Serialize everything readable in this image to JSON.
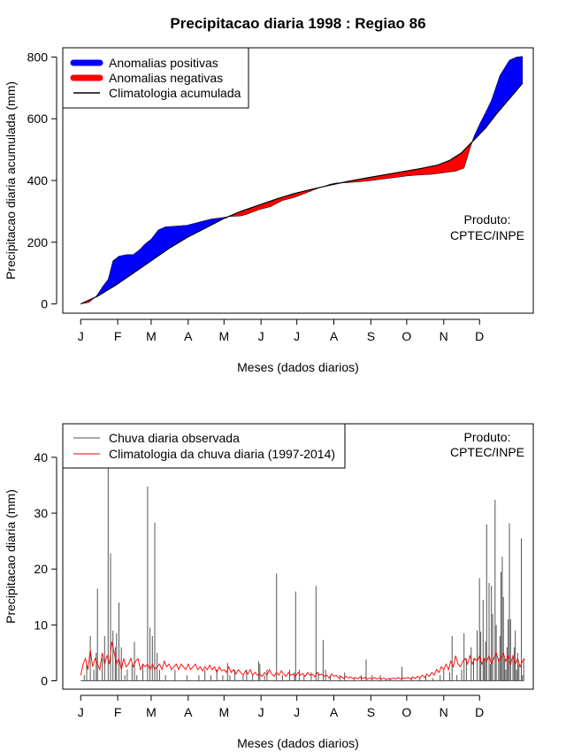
{
  "title": "Precipitacao diaria 1998 : Regiao 86",
  "product_label": [
    "Produto:",
    "CPTEC/INPE"
  ],
  "months": [
    "J",
    "F",
    "M",
    "A",
    "M",
    "J",
    "J",
    "A",
    "S",
    "O",
    "N",
    "D"
  ],
  "colors": {
    "positive": "#0000ff",
    "negative": "#ff0000",
    "climatology": "#000000",
    "daily_obs": "#555555",
    "daily_clim": "#ff0000"
  },
  "chart_data": [
    {
      "type": "area",
      "ylabel": "Precipitacao diaria acumulada (mm)",
      "xlabel": "Meses (dados diarios)",
      "yticks": [
        0,
        200,
        400,
        600,
        800
      ],
      "ylim": [
        -30,
        830
      ],
      "xlim": [
        -14,
        380
      ],
      "legend": [
        "Anomalias positivas",
        "Anomalias negativas",
        "Climatologia acumulada"
      ],
      "observed_cumulative": [
        [
          1,
          0
        ],
        [
          8,
          5
        ],
        [
          14,
          25
        ],
        [
          20,
          60
        ],
        [
          24,
          80
        ],
        [
          28,
          140
        ],
        [
          33,
          155
        ],
        [
          40,
          160
        ],
        [
          45,
          160
        ],
        [
          50,
          175
        ],
        [
          55,
          195
        ],
        [
          60,
          210
        ],
        [
          66,
          240
        ],
        [
          72,
          250
        ],
        [
          80,
          252
        ],
        [
          90,
          255
        ],
        [
          100,
          265
        ],
        [
          110,
          275
        ],
        [
          120,
          280
        ],
        [
          125,
          283
        ],
        [
          135,
          285
        ],
        [
          140,
          290
        ],
        [
          150,
          305
        ],
        [
          160,
          315
        ],
        [
          170,
          335
        ],
        [
          180,
          345
        ],
        [
          190,
          360
        ],
        [
          200,
          375
        ],
        [
          210,
          388
        ],
        [
          215,
          392
        ],
        [
          225,
          393
        ],
        [
          235,
          396
        ],
        [
          245,
          400
        ],
        [
          255,
          405
        ],
        [
          265,
          410
        ],
        [
          275,
          415
        ],
        [
          285,
          418
        ],
        [
          295,
          420
        ],
        [
          305,
          425
        ],
        [
          315,
          430
        ],
        [
          322,
          440
        ],
        [
          326,
          490
        ],
        [
          330,
          540
        ],
        [
          336,
          590
        ],
        [
          340,
          620
        ],
        [
          345,
          660
        ],
        [
          352,
          740
        ],
        [
          360,
          790
        ],
        [
          366,
          800
        ],
        [
          371,
          802
        ]
      ],
      "climatology_cumulative": [
        [
          1,
          0
        ],
        [
          15,
          25
        ],
        [
          30,
          60
        ],
        [
          45,
          100
        ],
        [
          60,
          140
        ],
        [
          75,
          180
        ],
        [
          90,
          215
        ],
        [
          105,
          245
        ],
        [
          120,
          275
        ],
        [
          135,
          300
        ],
        [
          150,
          320
        ],
        [
          165,
          340
        ],
        [
          180,
          358
        ],
        [
          195,
          372
        ],
        [
          210,
          385
        ],
        [
          225,
          397
        ],
        [
          240,
          408
        ],
        [
          255,
          418
        ],
        [
          270,
          428
        ],
        [
          285,
          438
        ],
        [
          300,
          450
        ],
        [
          310,
          465
        ],
        [
          320,
          490
        ],
        [
          330,
          530
        ],
        [
          340,
          570
        ],
        [
          350,
          620
        ],
        [
          360,
          665
        ],
        [
          371,
          715
        ]
      ]
    },
    {
      "type": "bar",
      "ylabel": "Precipitacao diaria (mm)",
      "xlabel": "Meses (dados diarios)",
      "yticks": [
        0,
        10,
        20,
        30,
        40
      ],
      "ylim": [
        -1.5,
        46
      ],
      "xlim": [
        -14,
        380
      ],
      "legend": [
        "Chuva diaria observada",
        "Climatologia da chuva diaria (1997-2014)"
      ],
      "observed_daily": [
        [
          4,
          1
        ],
        [
          6,
          3
        ],
        [
          9,
          8
        ],
        [
          12,
          2
        ],
        [
          14,
          5
        ],
        [
          15,
          16.5
        ],
        [
          19,
          4
        ],
        [
          21,
          8
        ],
        [
          24,
          38
        ],
        [
          26,
          22.8
        ],
        [
          28,
          9
        ],
        [
          30,
          6
        ],
        [
          31,
          8.5
        ],
        [
          33,
          14
        ],
        [
          35,
          6
        ],
        [
          38,
          1
        ],
        [
          40,
          2
        ],
        [
          44,
          3
        ],
        [
          46,
          7
        ],
        [
          48,
          1
        ],
        [
          53,
          3
        ],
        [
          57,
          34.8
        ],
        [
          59,
          9.5
        ],
        [
          61,
          8
        ],
        [
          63,
          28.3
        ],
        [
          65,
          5
        ],
        [
          67,
          2
        ],
        [
          72,
          1
        ],
        [
          80,
          2
        ],
        [
          90,
          1
        ],
        [
          100,
          1
        ],
        [
          105,
          2
        ],
        [
          110,
          1
        ],
        [
          115,
          2
        ],
        [
          120,
          1
        ],
        [
          124,
          3.2
        ],
        [
          126,
          1
        ],
        [
          130,
          2
        ],
        [
          137,
          1
        ],
        [
          140,
          2
        ],
        [
          145,
          1
        ],
        [
          150,
          3.5
        ],
        [
          151,
          3
        ],
        [
          155,
          1
        ],
        [
          157,
          2
        ],
        [
          165,
          19.2
        ],
        [
          170,
          1
        ],
        [
          176,
          2
        ],
        [
          180,
          1.5
        ],
        [
          181,
          16
        ],
        [
          184,
          2
        ],
        [
          188,
          1
        ],
        [
          194,
          1.5
        ],
        [
          198,
          17
        ],
        [
          200,
          1.5
        ],
        [
          204,
          7.3
        ],
        [
          206,
          2
        ],
        [
          210,
          1
        ],
        [
          218,
          1
        ],
        [
          222,
          1.5
        ],
        [
          230,
          0.5
        ],
        [
          236,
          1
        ],
        [
          240,
          3.8
        ],
        [
          245,
          1
        ],
        [
          252,
          1
        ],
        [
          260,
          0.5
        ],
        [
          270,
          2.5
        ],
        [
          278,
          0.5
        ],
        [
          285,
          0.5
        ],
        [
          290,
          1
        ],
        [
          296,
          0.5
        ],
        [
          302,
          1
        ],
        [
          305,
          2
        ],
        [
          310,
          1.5
        ],
        [
          312,
          8
        ],
        [
          316,
          1
        ],
        [
          320,
          2
        ],
        [
          322,
          8.5
        ],
        [
          324,
          4
        ],
        [
          328,
          6
        ],
        [
          330,
          4
        ],
        [
          333,
          9
        ],
        [
          335,
          18.4
        ],
        [
          336,
          8.8
        ],
        [
          338,
          14.5
        ],
        [
          339,
          4
        ],
        [
          340,
          7
        ],
        [
          341,
          28
        ],
        [
          343,
          17.5
        ],
        [
          344,
          3
        ],
        [
          345,
          17
        ],
        [
          346,
          12
        ],
        [
          348,
          32.4
        ],
        [
          349,
          10
        ],
        [
          351,
          4
        ],
        [
          352,
          8
        ],
        [
          353,
          19.5
        ],
        [
          354,
          22.2
        ],
        [
          355,
          15
        ],
        [
          356,
          4
        ],
        [
          357,
          2
        ],
        [
          358,
          6
        ],
        [
          359,
          11
        ],
        [
          360,
          28.2
        ],
        [
          361,
          11
        ],
        [
          363,
          4
        ],
        [
          364,
          6
        ],
        [
          365,
          9
        ],
        [
          366,
          2
        ],
        [
          367,
          5
        ],
        [
          368,
          3
        ],
        [
          370,
          25.5
        ],
        [
          371,
          1
        ],
        [
          372,
          4
        ]
      ],
      "climatology_daily": [
        [
          1,
          1
        ],
        [
          3,
          3
        ],
        [
          5,
          4
        ],
        [
          7,
          2
        ],
        [
          9,
          5.5
        ],
        [
          11,
          2.5
        ],
        [
          13,
          4
        ],
        [
          15,
          3
        ],
        [
          17,
          2
        ],
        [
          19,
          5
        ],
        [
          21,
          3
        ],
        [
          23,
          4.5
        ],
        [
          25,
          3
        ],
        [
          27,
          7
        ],
        [
          29,
          5
        ],
        [
          31,
          3
        ],
        [
          33,
          4
        ],
        [
          35,
          2
        ],
        [
          37,
          4
        ],
        [
          39,
          2.5
        ],
        [
          41,
          3
        ],
        [
          43,
          4
        ],
        [
          45,
          2.5
        ],
        [
          47,
          3.5
        ],
        [
          49,
          4
        ],
        [
          51,
          2
        ],
        [
          53,
          3
        ],
        [
          55,
          2.5
        ],
        [
          57,
          3
        ],
        [
          59,
          2
        ],
        [
          61,
          3
        ],
        [
          63,
          2
        ],
        [
          65,
          2.5
        ],
        [
          67,
          3
        ],
        [
          69,
          2
        ],
        [
          71,
          3.5
        ],
        [
          73,
          2.5
        ],
        [
          75,
          3
        ],
        [
          77,
          2
        ],
        [
          79,
          2.5
        ],
        [
          81,
          3
        ],
        [
          83,
          2
        ],
        [
          85,
          3
        ],
        [
          87,
          2.5
        ],
        [
          89,
          2
        ],
        [
          91,
          3
        ],
        [
          93,
          2
        ],
        [
          95,
          2.5
        ],
        [
          97,
          3
        ],
        [
          99,
          2
        ],
        [
          101,
          2.5
        ],
        [
          103,
          1.8
        ],
        [
          105,
          2.5
        ],
        [
          107,
          2
        ],
        [
          109,
          2.8
        ],
        [
          111,
          2
        ],
        [
          113,
          2.5
        ],
        [
          115,
          1.5
        ],
        [
          117,
          2.5
        ],
        [
          119,
          1.8
        ],
        [
          121,
          2
        ],
        [
          123,
          1.5
        ],
        [
          125,
          2.5
        ],
        [
          127,
          1.5
        ],
        [
          129,
          2
        ],
        [
          131,
          1.2
        ],
        [
          133,
          2
        ],
        [
          135,
          1.5
        ],
        [
          137,
          1
        ],
        [
          139,
          1.8
        ],
        [
          141,
          1.2
        ],
        [
          143,
          2
        ],
        [
          145,
          1
        ],
        [
          147,
          1.5
        ],
        [
          149,
          1
        ],
        [
          151,
          1.2
        ],
        [
          153,
          0.8
        ],
        [
          155,
          1.5
        ],
        [
          157,
          1
        ],
        [
          159,
          2
        ],
        [
          161,
          1.2
        ],
        [
          163,
          0.8
        ],
        [
          165,
          1.5
        ],
        [
          167,
          1
        ],
        [
          169,
          1.8
        ],
        [
          171,
          1.2
        ],
        [
          173,
          0.8
        ],
        [
          175,
          1.5
        ],
        [
          177,
          1
        ],
        [
          179,
          1.2
        ],
        [
          181,
          0.8
        ],
        [
          183,
          1.5
        ],
        [
          185,
          1
        ],
        [
          187,
          1.3
        ],
        [
          189,
          0.8
        ],
        [
          191,
          1.5
        ],
        [
          193,
          1
        ],
        [
          195,
          1.2
        ],
        [
          197,
          0.7
        ],
        [
          199,
          1.5
        ],
        [
          201,
          1
        ],
        [
          203,
          1.2
        ],
        [
          205,
          0.8
        ],
        [
          207,
          1
        ],
        [
          209,
          0.5
        ],
        [
          211,
          1.2
        ],
        [
          213,
          0.8
        ],
        [
          215,
          1
        ],
        [
          217,
          0.5
        ],
        [
          219,
          0.8
        ],
        [
          221,
          0.4
        ],
        [
          223,
          0.8
        ],
        [
          225,
          0.5
        ],
        [
          227,
          0.7
        ],
        [
          229,
          0.4
        ],
        [
          231,
          0.6
        ],
        [
          233,
          0.3
        ],
        [
          235,
          0.7
        ],
        [
          237,
          0.4
        ],
        [
          239,
          0.6
        ],
        [
          241,
          0.3
        ],
        [
          243,
          0.5
        ],
        [
          245,
          0.3
        ],
        [
          247,
          0.6
        ],
        [
          249,
          0.3
        ],
        [
          251,
          0.5
        ],
        [
          253,
          0.3
        ],
        [
          255,
          0.5
        ],
        [
          257,
          0.2
        ],
        [
          259,
          0.4
        ],
        [
          261,
          0.3
        ],
        [
          263,
          0.5
        ],
        [
          265,
          0.3
        ],
        [
          267,
          0.6
        ],
        [
          269,
          0.3
        ],
        [
          271,
          0.5
        ],
        [
          273,
          0.4
        ],
        [
          275,
          0.6
        ],
        [
          277,
          0.3
        ],
        [
          279,
          0.7
        ],
        [
          281,
          0.4
        ],
        [
          283,
          0.8
        ],
        [
          285,
          0.5
        ],
        [
          287,
          1
        ],
        [
          289,
          0.6
        ],
        [
          291,
          1.2
        ],
        [
          293,
          0.8
        ],
        [
          295,
          1.5
        ],
        [
          297,
          1
        ],
        [
          299,
          2
        ],
        [
          301,
          1.5
        ],
        [
          303,
          2.5
        ],
        [
          305,
          2
        ],
        [
          307,
          3
        ],
        [
          309,
          2
        ],
        [
          311,
          3.5
        ],
        [
          313,
          2.5
        ],
        [
          315,
          4.5
        ],
        [
          317,
          3
        ],
        [
          319,
          2.5
        ],
        [
          321,
          3.5
        ],
        [
          323,
          4
        ],
        [
          325,
          3
        ],
        [
          327,
          4.5
        ],
        [
          329,
          3
        ],
        [
          331,
          4
        ],
        [
          333,
          3.5
        ],
        [
          335,
          4.5
        ],
        [
          337,
          3
        ],
        [
          339,
          4
        ],
        [
          341,
          3.5
        ],
        [
          343,
          4.5
        ],
        [
          345,
          3
        ],
        [
          347,
          4
        ],
        [
          349,
          5
        ],
        [
          351,
          3.5
        ],
        [
          353,
          4
        ],
        [
          355,
          5
        ],
        [
          357,
          3.5
        ],
        [
          359,
          4.5
        ],
        [
          361,
          3
        ],
        [
          363,
          4.5
        ],
        [
          365,
          3
        ],
        [
          367,
          4
        ],
        [
          369,
          2.5
        ],
        [
          371,
          3.5
        ],
        [
          373,
          4
        ]
      ]
    }
  ]
}
